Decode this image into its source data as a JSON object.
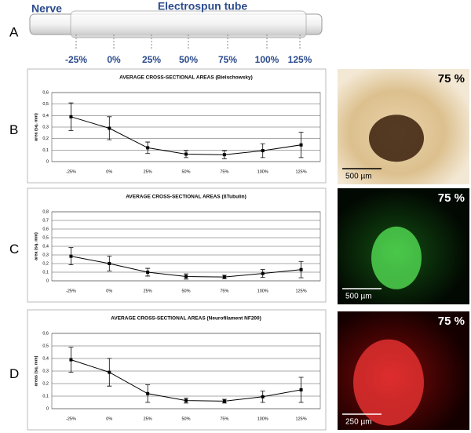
{
  "diagram": {
    "letter": "A",
    "nerve": "Nerve",
    "tube": "Electrospun tube",
    "positions": [
      "-25%",
      "0%",
      "25%",
      "50%",
      "75%",
      "100%",
      "125%"
    ]
  },
  "panels": [
    {
      "letter": "B",
      "photo_label": "75 %",
      "scale": "500 µm"
    },
    {
      "letter": "C",
      "photo_label": "75 %",
      "scale": "500 µm"
    },
    {
      "letter": "D",
      "photo_label": "75 %",
      "scale": "250 µm"
    }
  ],
  "chart_data": [
    {
      "type": "line",
      "title": "AVERAGE CROSS-SECTIONAL AREAS (Bielschowsky)",
      "y_label": "area (sq. mm)",
      "categories": [
        "-25%",
        "0%",
        "25%",
        "50%",
        "75%",
        "100%",
        "125%"
      ],
      "series": [
        {
          "color": "#000000",
          "values": [
            0.39,
            0.29,
            0.12,
            0.065,
            0.06,
            0.095,
            0.145
          ],
          "errors": [
            0.12,
            0.1,
            0.05,
            0.03,
            0.035,
            0.06,
            0.11
          ]
        }
      ],
      "ylim": [
        0,
        0.6
      ],
      "yticks": [
        0,
        {
          "value": 0.1,
          "label": "0,1"
        },
        {
          "value": 0.2,
          "label": "0,2"
        },
        {
          "value": 0.3,
          "label": "0,3"
        },
        {
          "value": 0.4,
          "label": "0,4"
        },
        {
          "value": 0.5,
          "label": "0,5"
        },
        {
          "value": 0.6,
          "label": "0,6"
        }
      ],
      "grid": true
    },
    {
      "type": "line",
      "title": "AVERAGE CROSS-SECTIONAL AREAS (ßTubulin)",
      "y_label": "area (sq. mm)",
      "categories": [
        "-25%",
        "0%",
        "25%",
        "50%",
        "75%",
        "100%",
        "125%"
      ],
      "series": [
        {
          "color": "#000000",
          "values": [
            0.285,
            0.2,
            0.1,
            0.05,
            0.045,
            0.085,
            0.13
          ],
          "errors": [
            0.1,
            0.085,
            0.045,
            0.03,
            0.02,
            0.045,
            0.095
          ]
        }
      ],
      "ylim": [
        0,
        0.8
      ],
      "yticks": [
        0,
        {
          "value": 0.1,
          "label": "0,1"
        },
        {
          "value": 0.2,
          "label": "0,2"
        },
        {
          "value": 0.3,
          "label": "0,3"
        },
        {
          "value": 0.4,
          "label": "0,4"
        },
        {
          "value": 0.5,
          "label": "0,5"
        },
        {
          "value": 0.6,
          "label": "0,6"
        },
        {
          "value": 0.7,
          "label": "0,7"
        },
        {
          "value": 0.8,
          "label": "0,8"
        }
      ],
      "grid": true
    },
    {
      "type": "line",
      "title": "AVERAGE CROSS-SECTIONAL AREAS (Neurofilament NF200)",
      "y_label": "areas (sq. mm)",
      "categories": [
        "-25%",
        "0%",
        "25%",
        "50%",
        "75%",
        "100%",
        "125%"
      ],
      "series": [
        {
          "color": "#000000",
          "values": [
            0.39,
            0.29,
            0.12,
            0.065,
            0.06,
            0.095,
            0.15
          ],
          "errors": [
            0.1,
            0.11,
            0.07,
            0.02,
            0.015,
            0.045,
            0.1
          ]
        }
      ],
      "ylim": [
        0,
        0.6
      ],
      "yticks": [
        0,
        {
          "value": 0.1,
          "label": "0,1"
        },
        {
          "value": 0.2,
          "label": "0,2"
        },
        {
          "value": 0.3,
          "label": "0,3"
        },
        {
          "value": 0.4,
          "label": "0,4"
        },
        {
          "value": 0.5,
          "label": "0,5"
        },
        {
          "value": 0.6,
          "label": "0,6"
        }
      ],
      "grid": true
    }
  ]
}
